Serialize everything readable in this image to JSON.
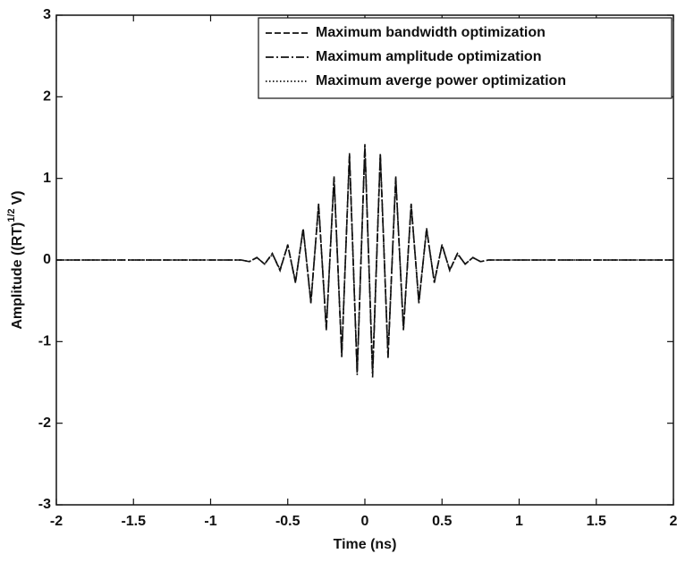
{
  "chart_data": {
    "type": "line",
    "xlabel": "Time (ns)",
    "ylabel": {
      "text": "Amplitude ((RT)",
      "superscript": "1/2",
      "unit": "V)"
    },
    "x": [
      -2,
      -0.8,
      -0.75,
      -0.7,
      -0.65,
      -0.6,
      -0.55,
      -0.5,
      -0.45,
      -0.4,
      -0.35,
      -0.3,
      -0.25,
      -0.2,
      -0.15,
      -0.1,
      -0.05,
      0,
      0.05,
      0.1,
      0.15,
      0.2,
      0.25,
      0.3,
      0.35,
      0.4,
      0.45,
      0.5,
      0.55,
      0.6,
      0.65,
      0.7,
      0.75,
      0.8,
      2
    ],
    "series": [
      {
        "name": "Maximum bandwidth optimization",
        "color": "#111111",
        "linestyle": "dashed",
        "values": [
          0,
          0,
          -0.02,
          0.03,
          -0.05,
          0.08,
          -0.13,
          0.19,
          -0.28,
          0.39,
          -0.53,
          0.69,
          -0.86,
          1.03,
          -1.19,
          1.31,
          -1.39,
          1.42,
          -1.39,
          1.31,
          -1.19,
          1.03,
          -0.86,
          0.69,
          -0.53,
          0.39,
          -0.28,
          0.19,
          -0.13,
          0.08,
          -0.05,
          0.03,
          -0.02,
          0,
          0
        ]
      },
      {
        "name": "Maximum amplitude optimization",
        "color": "#111111",
        "linestyle": "dashdot",
        "values": [
          0,
          0,
          -0.02,
          0.03,
          -0.05,
          0.08,
          -0.12,
          0.18,
          -0.27,
          0.38,
          -0.52,
          0.68,
          -0.85,
          1.01,
          -1.17,
          1.29,
          -1.41,
          1.4,
          -1.44,
          1.29,
          -1.2,
          1.01,
          -0.85,
          0.68,
          -0.52,
          0.38,
          -0.27,
          0.18,
          -0.12,
          0.08,
          -0.05,
          0.03,
          -0.02,
          0,
          0
        ]
      },
      {
        "name": "Maximum averge power optimization",
        "color": "#111111",
        "linestyle": "dotted",
        "values": [
          0,
          0,
          -0.02,
          0.03,
          -0.05,
          0.07,
          -0.12,
          0.18,
          -0.26,
          0.37,
          -0.5,
          0.66,
          -0.83,
          0.99,
          -1.15,
          1.27,
          -1.36,
          1.38,
          -1.37,
          1.27,
          -1.16,
          0.99,
          -0.83,
          0.66,
          -0.5,
          0.37,
          -0.26,
          0.18,
          -0.12,
          0.07,
          -0.05,
          0.03,
          -0.02,
          0,
          0
        ]
      }
    ],
    "xlim": [
      -2,
      2
    ],
    "xticks": [
      -2,
      -1.5,
      -1,
      -0.5,
      0,
      0.5,
      1,
      1.5,
      2
    ],
    "ylim": [
      -3,
      3
    ],
    "yticks": [
      -3,
      -2,
      -1,
      0,
      1,
      2,
      3
    ],
    "legend": "upper right",
    "grid": false
  }
}
